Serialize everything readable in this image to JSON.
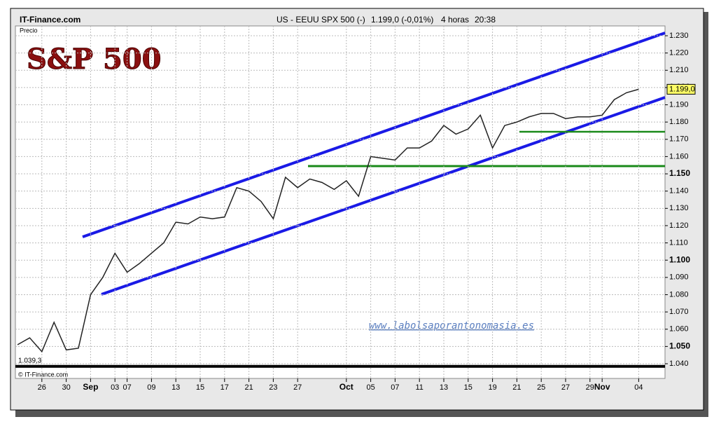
{
  "header": {
    "source": "IT-Finance.com",
    "instrument": "US - EEUU SPX 500 (-)",
    "quote": "1.199,0 (-0,01%)",
    "period": "4 horas",
    "time": "20:38"
  },
  "chart_data": {
    "type": "line",
    "title": "S&P 500",
    "y_label": "Precio",
    "color": "#222222",
    "categories": [
      null,
      null,
      "26",
      null,
      "30",
      null,
      "Sep",
      null,
      "03",
      "07",
      null,
      "09",
      null,
      "13",
      null,
      "15",
      null,
      "17",
      null,
      "21",
      null,
      "23",
      null,
      "27",
      null,
      null,
      null,
      "Oct",
      null,
      "05",
      null,
      "07",
      null,
      "11",
      null,
      "13",
      null,
      "15",
      null,
      "19",
      null,
      "21",
      null,
      "25",
      null,
      "27",
      null,
      "29",
      "Nov",
      null,
      null,
      "04"
    ],
    "values": [
      1051,
      1055,
      1047,
      1064,
      1048,
      1049,
      1080,
      1090,
      1104,
      1093,
      1098,
      1104,
      1110,
      1122,
      1121,
      1125,
      1124,
      1125,
      1142,
      1140,
      1134,
      1124,
      1148,
      1142,
      1147,
      1145,
      1141,
      1146,
      1137,
      1160,
      1159,
      1158,
      1165,
      1165,
      1169,
      1178,
      1173,
      1176,
      1184,
      1165,
      1178,
      1180,
      1183,
      1185,
      1185,
      1182,
      1183,
      1183,
      1184,
      1193,
      1197,
      1199
    ],
    "ylim": [
      1040,
      1230
    ],
    "yticks": [
      {
        "value": 1040,
        "label": "1.040"
      },
      {
        "value": 1050,
        "label": "1.050"
      },
      {
        "value": 1060,
        "label": "1.060"
      },
      {
        "value": 1070,
        "label": "1.070"
      },
      {
        "value": 1080,
        "label": "1.080"
      },
      {
        "value": 1090,
        "label": "1.090"
      },
      {
        "value": 1100,
        "label": "1.100"
      },
      {
        "value": 1110,
        "label": "1.110"
      },
      {
        "value": 1120,
        "label": "1.120"
      },
      {
        "value": 1130,
        "label": "1.130"
      },
      {
        "value": 1140,
        "label": "1.140"
      },
      {
        "value": 1150,
        "label": "1.150"
      },
      {
        "value": 1160,
        "label": "1.160"
      },
      {
        "value": 1170,
        "label": "1.170"
      },
      {
        "value": 1180,
        "label": "1.180"
      },
      {
        "value": 1190,
        "label": "1.190"
      },
      {
        "value": 1200,
        "label": "1.200"
      },
      {
        "value": 1210,
        "label": "1.210"
      },
      {
        "value": 1220,
        "label": "1.220"
      },
      {
        "value": 1230,
        "label": "1.230"
      }
    ],
    "grid": true,
    "annotations": [
      {
        "value": 1199,
        "label": "1.199,0"
      },
      {
        "value": 1039.3,
        "label": "1.039,3"
      }
    ],
    "watermark": "www.labolsaporantonomasia.es",
    "copyright": "© IT-Finance.com"
  }
}
